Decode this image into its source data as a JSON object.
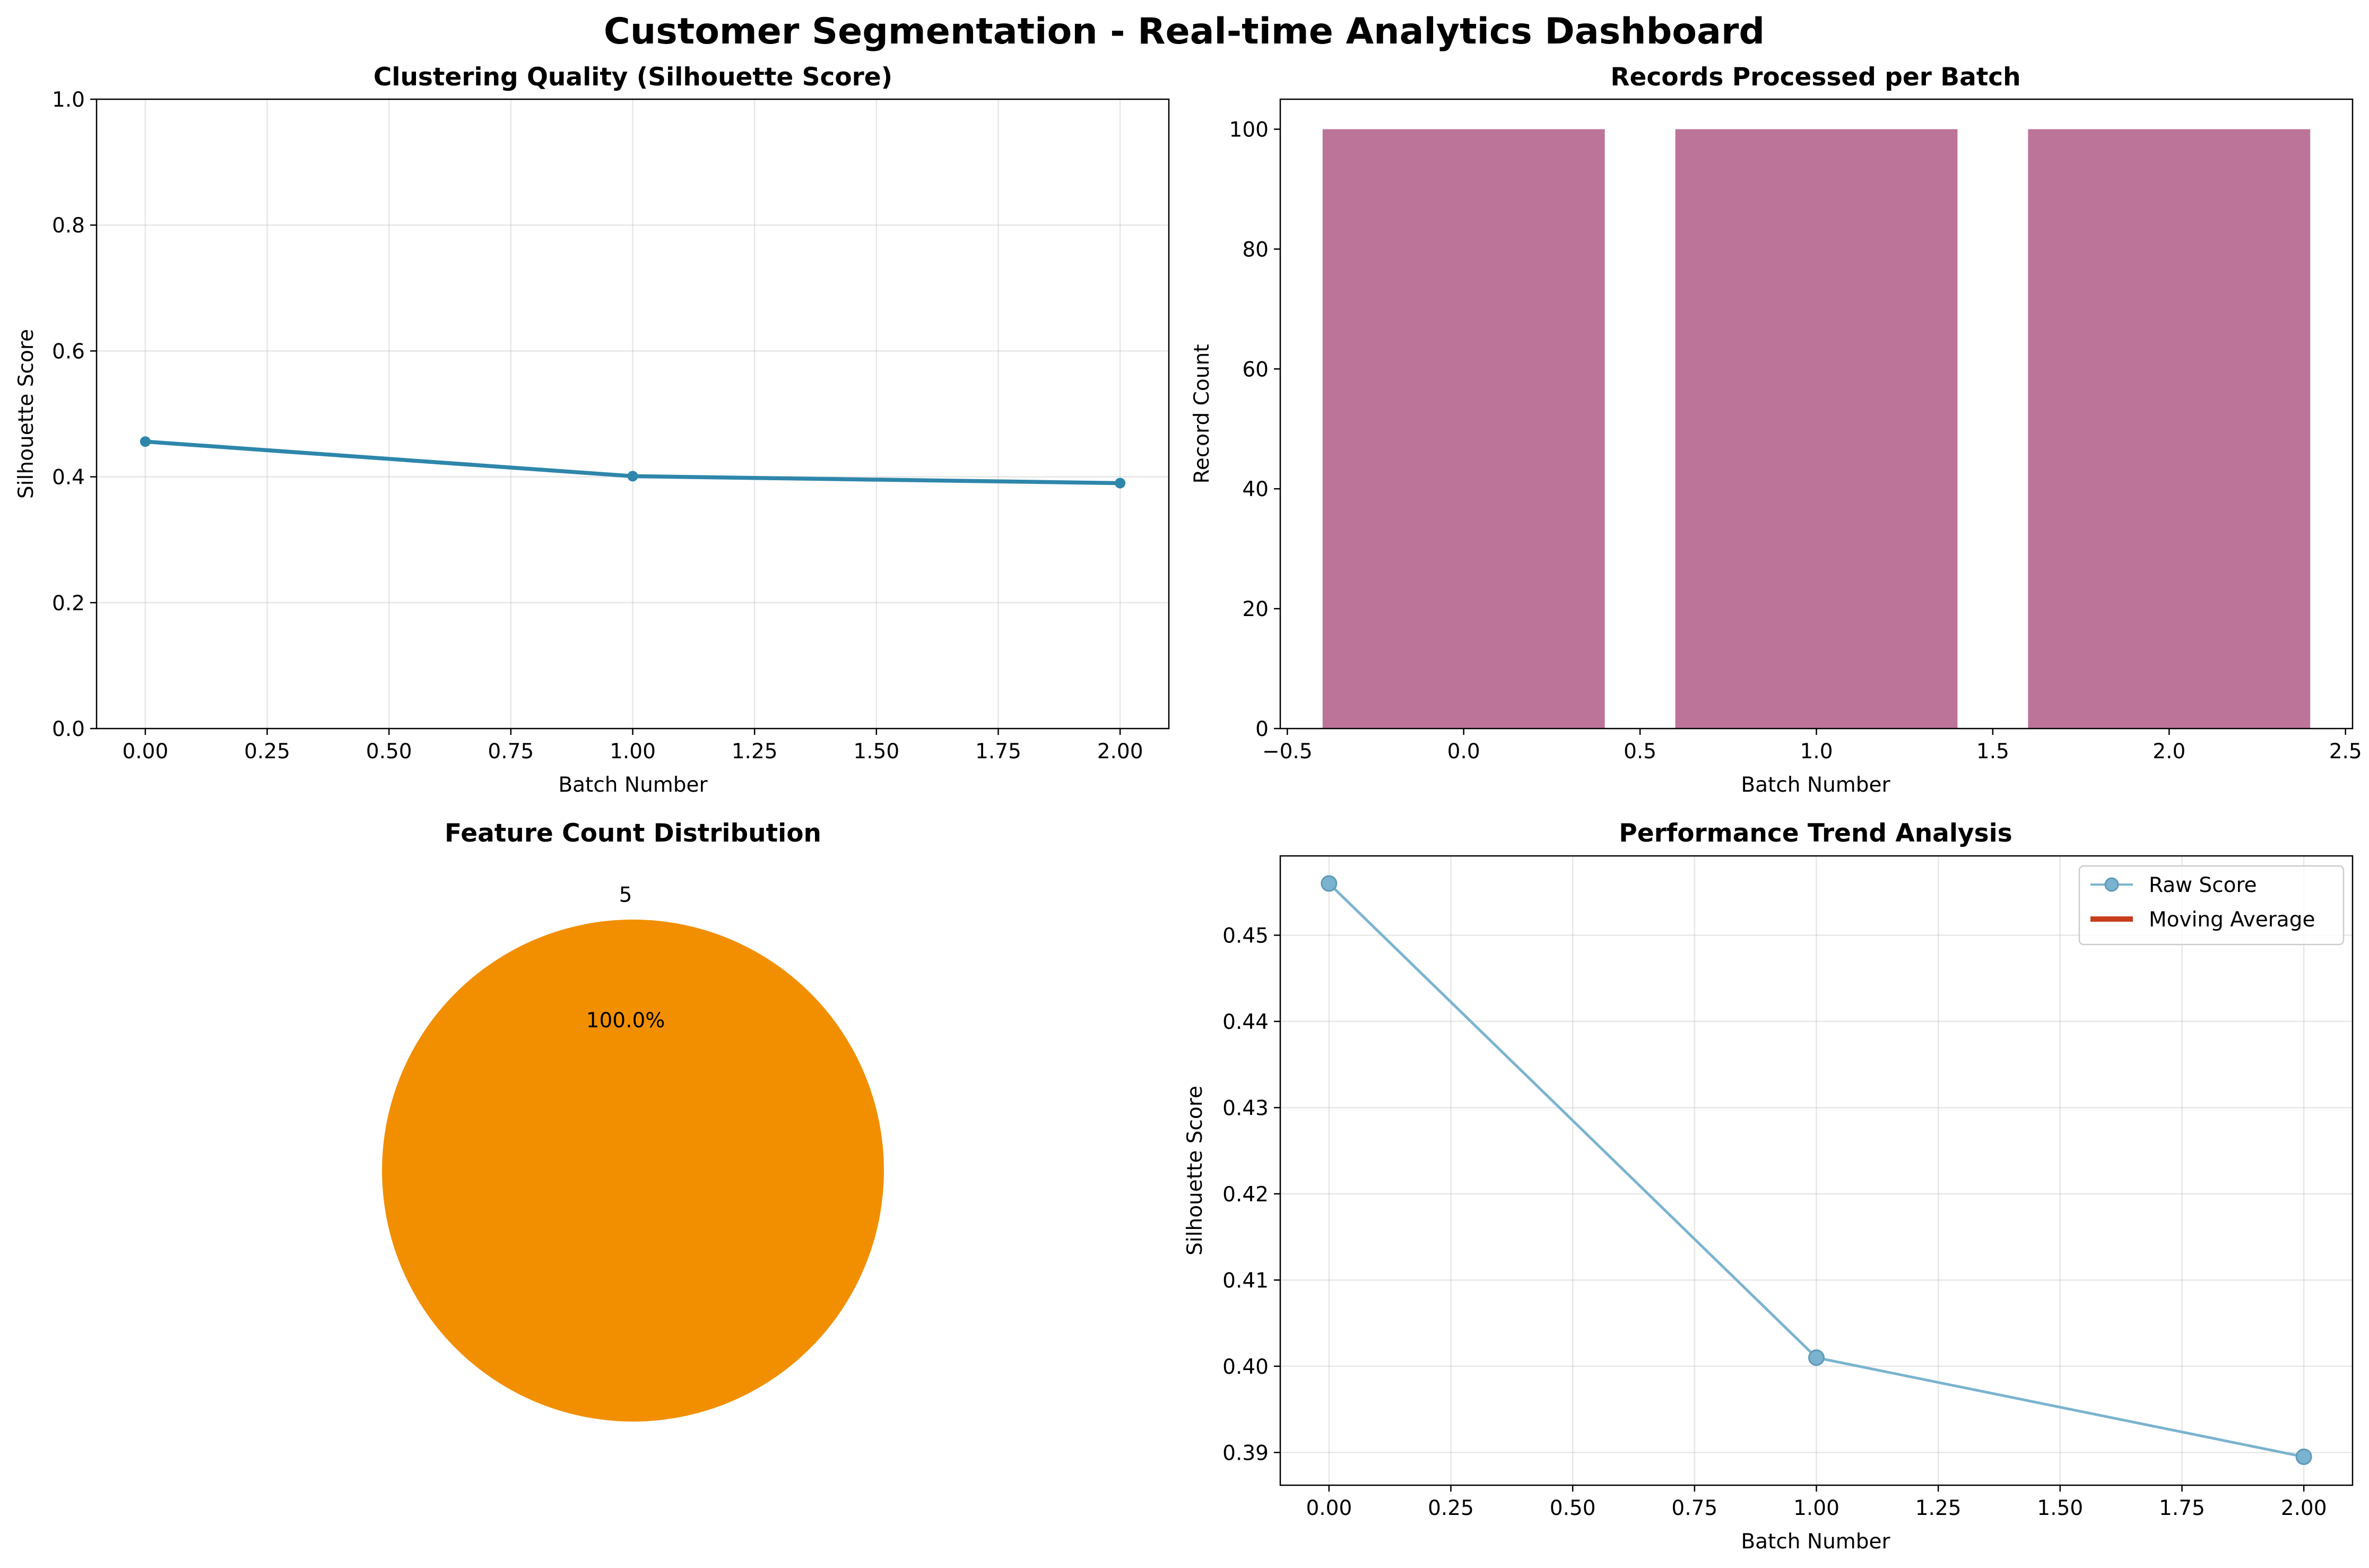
{
  "suptitle": "Customer Segmentation - Real-time Analytics Dashboard",
  "chart_data": [
    {
      "type": "line",
      "title": "Clustering Quality (Silhouette Score)",
      "xlabel": "Batch Number",
      "ylabel": "Silhouette Score",
      "x": [
        0,
        1,
        2
      ],
      "values": [
        0.456,
        0.401,
        0.39
      ],
      "xlim": [
        -0.1,
        2.1
      ],
      "ylim": [
        0,
        1
      ],
      "xticks": [
        "0.00",
        "0.25",
        "0.50",
        "0.75",
        "1.00",
        "1.25",
        "1.50",
        "1.75",
        "2.00"
      ],
      "yticks": [
        "0.0",
        "0.2",
        "0.4",
        "0.6",
        "0.8",
        "1.0"
      ],
      "grid": true,
      "color": "#2e86ab"
    },
    {
      "type": "bar",
      "title": "Records Processed per Batch",
      "xlabel": "Batch Number",
      "ylabel": "Record Count",
      "x": [
        0,
        1,
        2
      ],
      "values": [
        100,
        100,
        100
      ],
      "xlim": [
        -0.52,
        2.52
      ],
      "ylim": [
        0,
        105
      ],
      "xticks": [
        "−0.5",
        "0.0",
        "0.5",
        "1.0",
        "1.5",
        "2.0",
        "2.5"
      ],
      "yticks": [
        "0",
        "20",
        "40",
        "60",
        "80",
        "100"
      ],
      "grid": false,
      "color": "#bd7499"
    },
    {
      "type": "pie",
      "title": "Feature Count Distribution",
      "labels": [
        "5"
      ],
      "values": [
        100
      ],
      "pct_labels": [
        "100.0%"
      ],
      "color": "#f18f01"
    },
    {
      "type": "line",
      "title": "Performance Trend Analysis",
      "xlabel": "Batch Number",
      "ylabel": "Silhouette Score",
      "xlim": [
        -0.1,
        2.1
      ],
      "ylim": [
        0.3862,
        0.4592
      ],
      "xticks": [
        "0.00",
        "0.25",
        "0.50",
        "0.75",
        "1.00",
        "1.25",
        "1.50",
        "1.75",
        "2.00"
      ],
      "yticks": [
        "0.39",
        "0.40",
        "0.41",
        "0.42",
        "0.43",
        "0.44",
        "0.45"
      ],
      "grid": true,
      "legend_position": "top-right",
      "series": [
        {
          "name": "Raw Score",
          "x": [
            0,
            1,
            2
          ],
          "values": [
            0.456,
            0.401,
            0.3895
          ],
          "color": "#7ab3cf"
        },
        {
          "name": "Moving Average",
          "x": [],
          "values": [],
          "color": "#c73e1d"
        }
      ]
    }
  ]
}
